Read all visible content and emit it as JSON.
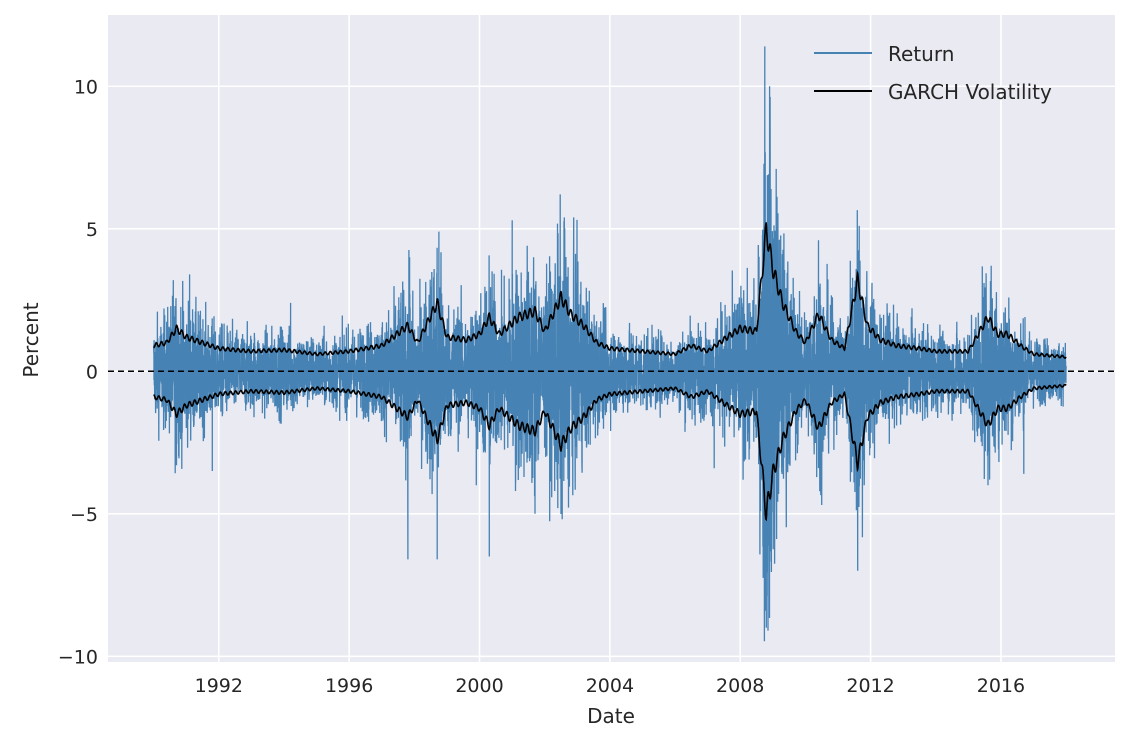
{
  "chart_data": {
    "type": "line",
    "title": "",
    "xlabel": "Date",
    "ylabel": "Percent",
    "xlim": [
      1988.6,
      2019.5
    ],
    "ylim": [
      -10.2,
      12.5
    ],
    "x_ticks": [
      1992,
      1996,
      2000,
      2004,
      2008,
      2012,
      2016
    ],
    "x_tick_labels": [
      "1992",
      "1996",
      "2000",
      "2004",
      "2008",
      "2012",
      "2016"
    ],
    "y_ticks": [
      -10,
      -5,
      0,
      5,
      10
    ],
    "y_tick_labels": [
      "−10",
      "−5",
      "0",
      "5",
      "10"
    ],
    "grid": true,
    "legend": {
      "placement": "top-right",
      "entries": [
        "Return",
        "GARCH Volatility"
      ]
    },
    "colors": {
      "return": "#4682b4",
      "volatility": "#000000",
      "background": "#eaeaf2",
      "grid": "#ffffff",
      "zero_line": "#000000"
    },
    "reference_line": {
      "y": 0,
      "style": "dashed"
    },
    "date_range": [
      1990.0,
      2018.0
    ],
    "series": [
      {
        "name": "GARCH Volatility",
        "note": "conditional volatility plotted as +/- value",
        "x": [
          1990.0,
          1990.4,
          1990.7,
          1991.0,
          1991.5,
          1992.0,
          1993.0,
          1994.0,
          1995.0,
          1996.0,
          1997.0,
          1997.8,
          1998.1,
          1998.7,
          1999.0,
          1999.6,
          2000.0,
          2000.3,
          2000.6,
          2000.9,
          2001.2,
          2001.7,
          2002.0,
          2002.5,
          2002.8,
          2003.2,
          2003.6,
          2004.0,
          2005.0,
          2006.0,
          2006.5,
          2007.0,
          2007.6,
          2008.0,
          2008.5,
          2008.8,
          2009.0,
          2009.3,
          2009.7,
          2010.0,
          2010.4,
          2010.8,
          2011.2,
          2011.6,
          2011.9,
          2012.3,
          2012.8,
          2013.5,
          2014.0,
          2015.0,
          2015.6,
          2015.9,
          2016.2,
          2016.6,
          2017.0,
          2017.5,
          2018.0
        ],
        "values": [
          0.9,
          1.0,
          1.5,
          1.2,
          1.0,
          0.8,
          0.7,
          0.75,
          0.6,
          0.7,
          0.9,
          1.6,
          1.0,
          2.4,
          1.2,
          1.1,
          1.3,
          1.9,
          1.3,
          1.6,
          1.9,
          2.1,
          1.4,
          2.6,
          2.0,
          1.6,
          1.0,
          0.8,
          0.7,
          0.6,
          0.9,
          0.7,
          1.2,
          1.5,
          1.4,
          5.0,
          3.6,
          2.4,
          1.4,
          1.0,
          2.0,
          1.1,
          0.8,
          3.2,
          1.6,
          1.1,
          0.9,
          0.8,
          0.7,
          0.7,
          1.9,
          1.3,
          1.3,
          0.9,
          0.6,
          0.55,
          0.5
        ]
      },
      {
        "name": "Return",
        "note": "daily returns; extreme observations listed",
        "spikes_x": [
          1990.6,
          1990.7,
          1991.1,
          1991.8,
          1994.2,
          1997.8,
          1997.85,
          1998.7,
          1998.75,
          1999.9,
          2000.3,
          2001.0,
          2001.1,
          2001.7,
          2002.4,
          2002.6,
          2007.2,
          2008.75,
          2008.77,
          2008.8,
          2008.85,
          2008.9,
          2009.1,
          2010.4,
          2011.6,
          2011.65,
          2015.6,
          2015.7,
          2016.7
        ],
        "spikes_y": [
          3.2,
          -3.3,
          3.4,
          -3.5,
          2.4,
          -6.6,
          4.0,
          -6.6,
          4.9,
          -4.0,
          -6.5,
          5.3,
          -4.2,
          -5.0,
          -4.8,
          5.4,
          -3.4,
          11.4,
          -8.4,
          -9.0,
          -9.1,
          10.0,
          7.1,
          4.6,
          -7.0,
          5.1,
          -4.0,
          3.7,
          -3.6
        ]
      }
    ]
  }
}
